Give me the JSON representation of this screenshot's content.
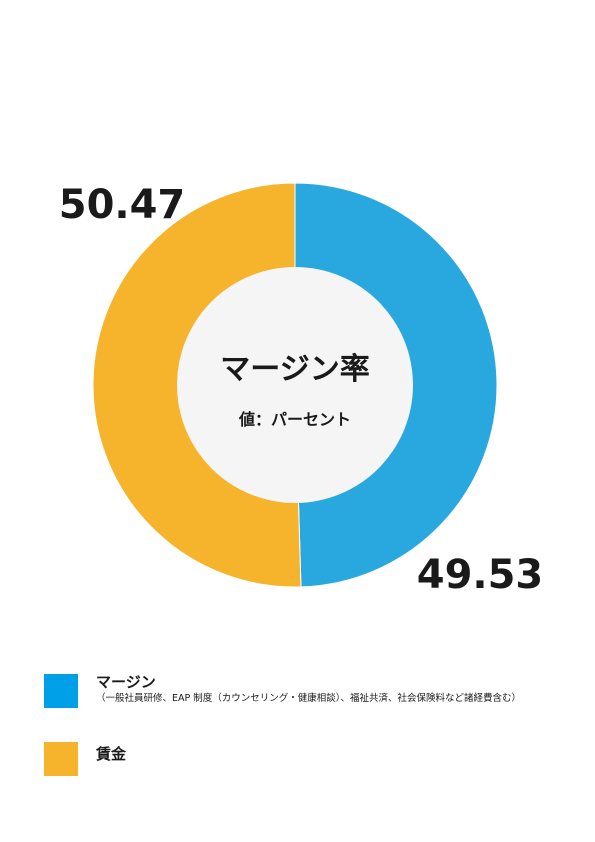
{
  "chart_data": {
    "type": "pie",
    "donut": true,
    "title": "マージン率",
    "subtitle": "値：パーセント",
    "categories": [
      "マージン",
      "賃金"
    ],
    "values": [
      49.53,
      50.47
    ],
    "value_labels": [
      "49.53",
      "50.47"
    ],
    "colors": [
      "#29a8e0",
      "#f6b42c"
    ],
    "center_color": "#f5f5f5",
    "legend": "bottom-left"
  },
  "legend": {
    "items": [
      {
        "name": "マージン",
        "note": "（一般社員研修、EAP 制度（カウンセリング・健康相談）、福祉共済、社会保険料など諸経費含む）",
        "color": "#00a0e9"
      },
      {
        "name": "賃金",
        "note": "",
        "color": "#f6b42c"
      }
    ]
  }
}
